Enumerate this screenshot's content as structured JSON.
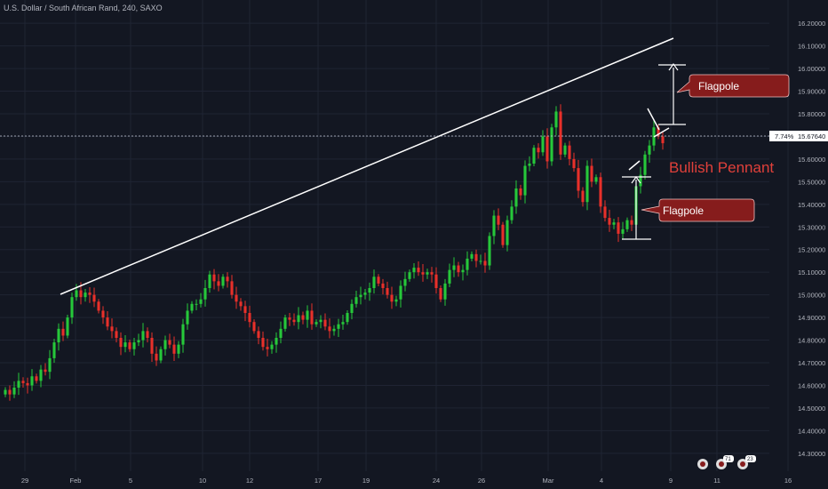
{
  "header": {
    "title": "U.S. Dollar / South African Rand, 240, SAXO"
  },
  "colors": {
    "background": "#131722",
    "grid": "#1f2433",
    "up": "#26c83a",
    "down": "#e8302a",
    "trendline": "#ffffff",
    "callout_fill": "#861c1c",
    "callout_stroke": "#f0c0c0",
    "pennant_text": "#e0403a",
    "axis_text": "#b2b5be"
  },
  "chart_data": {
    "type": "candlestick",
    "title": "U.S. Dollar / South African Rand, 240, SAXO",
    "xlabel": "",
    "ylabel": "",
    "ylim": [
      14.26,
      16.24
    ],
    "y_ticks": [
      "16.20000",
      "16.10000",
      "16.00000",
      "15.90000",
      "15.80000",
      "15.70000",
      "15.60000",
      "15.50000",
      "15.40000",
      "15.30000",
      "15.20000",
      "15.10000",
      "15.00000",
      "14.90000",
      "14.80000",
      "14.70000",
      "14.60000",
      "14.50000",
      "14.40000",
      "14.30000"
    ],
    "x_ticks": [
      "29",
      "Feb",
      "5",
      "10",
      "12",
      "17",
      "19",
      "24",
      "26",
      "Mar",
      "4",
      "9",
      "11",
      "16"
    ],
    "grid": true,
    "current_price": {
      "value": 15.6764,
      "label": "15.67640",
      "change_label": "7.74%"
    },
    "series": [
      {
        "values": [
          14.58,
          14.56,
          14.59,
          14.62,
          14.61,
          14.6,
          14.64,
          14.62,
          14.67,
          14.66,
          14.72,
          14.79,
          14.85,
          14.82,
          14.9,
          14.99,
          15.02,
          14.99,
          15.01,
          15.0,
          14.97,
          14.93,
          14.9,
          14.86,
          14.84,
          14.81,
          14.77,
          14.79,
          14.76,
          14.79,
          14.8,
          14.84,
          14.81,
          14.74,
          14.71,
          14.76,
          14.8,
          14.78,
          14.74,
          14.78,
          14.87,
          14.93,
          14.96,
          14.96,
          14.98,
          15.03,
          15.09,
          15.06,
          15.04,
          15.08,
          15.06,
          15.0,
          14.97,
          14.95,
          14.92,
          14.88,
          14.84,
          14.81,
          14.77,
          14.76,
          14.78,
          14.81,
          14.85,
          14.9,
          14.89,
          14.88,
          14.91,
          14.89,
          14.93,
          14.87,
          14.88,
          14.89,
          14.86,
          14.84,
          14.85,
          14.87,
          14.88,
          14.92,
          14.96,
          14.99,
          15.0,
          15.01,
          15.03,
          15.08,
          15.05,
          15.03,
          15.0,
          14.97,
          14.98,
          15.04,
          15.07,
          15.1,
          15.12,
          15.1,
          15.09,
          15.1,
          15.09,
          15.03,
          14.98,
          15.05,
          15.11,
          15.13,
          15.1,
          15.11,
          15.16,
          15.18,
          15.15,
          15.15,
          15.13,
          15.26,
          15.35,
          15.31,
          15.22,
          15.33,
          15.39,
          15.47,
          15.44,
          15.57,
          15.58,
          15.65,
          15.63,
          15.7,
          15.59,
          15.74,
          15.81,
          15.62,
          15.66,
          15.6,
          15.56,
          15.46,
          15.41,
          15.57,
          15.5,
          15.52,
          15.39,
          15.34,
          15.31,
          15.32,
          15.27,
          15.29,
          15.33,
          15.31,
          15.48,
          15.53,
          15.62,
          15.66,
          15.74,
          15.7,
          15.67
        ]
      },
      {
        "opens": [
          14.56,
          14.58,
          14.56,
          14.59,
          14.62,
          14.61,
          14.6,
          14.64,
          14.62,
          14.67,
          14.66,
          14.72,
          14.79,
          14.85,
          14.82,
          14.9,
          14.99,
          15.02,
          14.99,
          15.01,
          15.0,
          14.97,
          14.93,
          14.9,
          14.86,
          14.84,
          14.81,
          14.77,
          14.79,
          14.76,
          14.79,
          14.8,
          14.84,
          14.81,
          14.74,
          14.71,
          14.76,
          14.8,
          14.78,
          14.74,
          14.78,
          14.87,
          14.93,
          14.96,
          14.96,
          14.98,
          15.03,
          15.09,
          15.06,
          15.04,
          15.08,
          15.06,
          15.0,
          14.97,
          14.95,
          14.92,
          14.88,
          14.84,
          14.81,
          14.77,
          14.76,
          14.78,
          14.81,
          14.85,
          14.9,
          14.89,
          14.88,
          14.91,
          14.89,
          14.93,
          14.87,
          14.88,
          14.89,
          14.86,
          14.84,
          14.85,
          14.87,
          14.88,
          14.92,
          14.96,
          14.99,
          15.0,
          15.01,
          15.03,
          15.08,
          15.05,
          15.03,
          15.0,
          14.97,
          14.98,
          15.04,
          15.07,
          15.1,
          15.12,
          15.1,
          15.09,
          15.1,
          15.09,
          15.03,
          14.98,
          15.05,
          15.11,
          15.13,
          15.1,
          15.11,
          15.16,
          15.18,
          15.15,
          15.15,
          15.13,
          15.26,
          15.35,
          15.31,
          15.22,
          15.33,
          15.39,
          15.47,
          15.44,
          15.57,
          15.58,
          15.65,
          15.63,
          15.7,
          15.59,
          15.74,
          15.81,
          15.62,
          15.66,
          15.6,
          15.56,
          15.46,
          15.41,
          15.57,
          15.5,
          15.52,
          15.39,
          15.34,
          15.31,
          15.32,
          15.27,
          15.29,
          15.33,
          15.31,
          15.48,
          15.53,
          15.62,
          15.66,
          15.74,
          15.7
        ]
      }
    ]
  },
  "annotations": {
    "flagpole_upper_label": "Flagpole",
    "flagpole_lower_label": "Flagpole",
    "pennant_label": "Bullish Pennant"
  },
  "badges": {
    "first_count": "71",
    "second_count": "23"
  }
}
